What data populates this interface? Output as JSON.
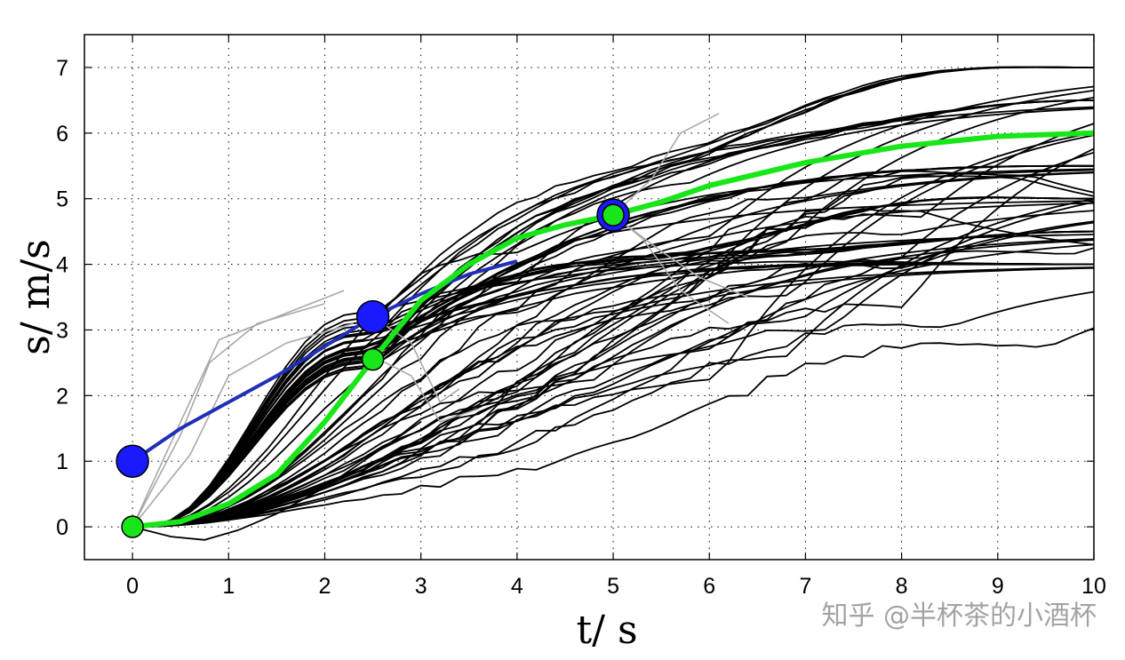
{
  "chart_data": {
    "type": "line",
    "title": "",
    "xlabel": "t/ s",
    "ylabel": "s/ m/s",
    "xlim": [
      -0.5,
      10
    ],
    "ylim": [
      -0.5,
      7.5
    ],
    "xticks": [
      0,
      1,
      2,
      3,
      4,
      5,
      6,
      7,
      8,
      9,
      10
    ],
    "yticks": [
      0,
      1,
      2,
      3,
      4,
      5,
      6,
      7
    ],
    "grid": "dotted",
    "colors": {
      "candidates": "#000000",
      "rejected": "#a8a8a8",
      "blue_path": "#1a1aff",
      "blue_line": "#1f2fb8",
      "green_path": "#19e619",
      "marker_edge": "#000000"
    },
    "series": [
      {
        "style": "blue",
        "x": [
          0,
          0.5,
          1,
          1.5,
          2,
          2.5,
          3,
          3.5,
          4
        ],
        "y": [
          1.0,
          1.5,
          1.9,
          2.3,
          2.75,
          3.2,
          3.55,
          3.85,
          4.05
        ]
      },
      {
        "style": "green",
        "x": [
          0,
          0.5,
          1,
          1.5,
          2,
          2.5,
          3,
          3.5,
          4,
          4.5,
          5,
          5.5,
          6,
          7,
          8,
          9,
          10
        ],
        "y": [
          0,
          0.08,
          0.35,
          0.8,
          1.6,
          2.55,
          3.45,
          4.0,
          4.4,
          4.6,
          4.75,
          4.95,
          5.2,
          5.55,
          5.8,
          5.95,
          6.0
        ]
      }
    ],
    "markers": [
      {
        "x": 0,
        "y": 1.0,
        "color": "blue",
        "size": "large"
      },
      {
        "x": 2.5,
        "y": 3.2,
        "color": "blue",
        "size": "large"
      },
      {
        "x": 5,
        "y": 4.75,
        "color": "blue",
        "size": "large"
      },
      {
        "x": 0,
        "y": 0,
        "color": "green",
        "size": "small"
      },
      {
        "x": 2.5,
        "y": 2.55,
        "color": "green",
        "size": "small"
      },
      {
        "x": 5,
        "y": 4.75,
        "color": "green",
        "size": "small"
      }
    ],
    "candidate_trajectories": {
      "color": "black",
      "endpoints_at_t10": [
        4.0,
        4.5,
        5.0,
        5.5,
        6.5,
        7.0
      ],
      "count": "many"
    },
    "rejected_trajectories": {
      "color": "gray"
    }
  },
  "watermark": "知乎 @半杯茶的小酒杯"
}
